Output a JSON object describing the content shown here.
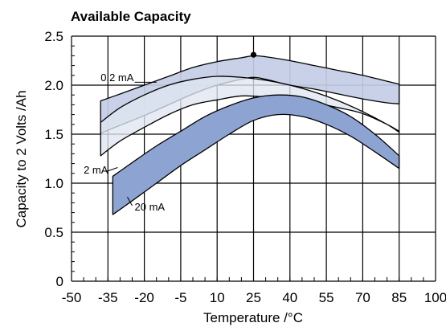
{
  "chart_data": {
    "type": "area",
    "title": "Available Capacity",
    "xlabel": "Temperature /°C",
    "ylabel": "Capacity to 2 Volts /Ah",
    "xlim": [
      -50,
      100
    ],
    "ylim": [
      0,
      2.5
    ],
    "xticks": [
      "-50",
      "-35",
      "-20",
      "-5",
      "10",
      "25",
      "40",
      "55",
      "70",
      "85",
      "100"
    ],
    "yticks": [
      "0",
      "0.5",
      "1.0",
      "1.5",
      "2.0",
      "2.5"
    ],
    "grid": true,
    "colors": {
      "band_light": "#dfe5f1",
      "band_mid": "#c3cde6",
      "band_dark": "#8da3d1",
      "stroke": "#000000"
    },
    "annotations": [
      {
        "text": "0.2 mA",
        "x": -38,
        "y": 2.04
      },
      {
        "text": "2 mA",
        "x": -45,
        "y": 1.1
      },
      {
        "text": "20 mA",
        "x": -24,
        "y": 0.72
      }
    ],
    "marker": {
      "x": 25,
      "y": 2.31
    },
    "series": [
      {
        "name": "0.2 mA",
        "upper": {
          "x": [
            -38,
            -30,
            -20,
            -10,
            0,
            10,
            20,
            25,
            30,
            40,
            50,
            60,
            70,
            80,
            85
          ],
          "y": [
            1.84,
            1.91,
            2.0,
            2.09,
            2.18,
            2.24,
            2.28,
            2.3,
            2.29,
            2.25,
            2.2,
            2.15,
            2.1,
            2.04,
            2.01
          ]
        },
        "lower": {
          "x": [
            -38,
            -30,
            -20,
            -10,
            0,
            10,
            20,
            25,
            30,
            40,
            50,
            60,
            70,
            80,
            85
          ],
          "y": [
            1.51,
            1.59,
            1.69,
            1.8,
            1.91,
            2.0,
            2.06,
            2.08,
            2.06,
            2.0,
            1.96,
            1.91,
            1.86,
            1.82,
            1.81
          ]
        }
      },
      {
        "name": "2 mA",
        "upper": {
          "x": [
            -38,
            -30,
            -20,
            -10,
            0,
            10,
            20,
            30,
            40,
            50,
            60,
            70,
            80,
            85
          ],
          "y": [
            1.62,
            1.77,
            1.9,
            2.0,
            2.06,
            2.09,
            2.08,
            2.05,
            2.0,
            1.93,
            1.84,
            1.73,
            1.6,
            1.52
          ]
        },
        "lower": {
          "x": [
            -38,
            -30,
            -20,
            -10,
            0,
            10,
            20,
            30,
            40,
            50,
            60,
            70,
            80,
            85
          ],
          "y": [
            1.28,
            1.43,
            1.57,
            1.7,
            1.8,
            1.85,
            1.89,
            1.88,
            1.86,
            1.82,
            1.77,
            1.71,
            1.6,
            1.53
          ]
        }
      },
      {
        "name": "20 mA",
        "upper": {
          "x": [
            -33,
            -25,
            -15,
            -5,
            5,
            15,
            25,
            35,
            45,
            55,
            65,
            75,
            85
          ],
          "y": [
            1.07,
            1.21,
            1.38,
            1.53,
            1.68,
            1.79,
            1.87,
            1.9,
            1.88,
            1.8,
            1.68,
            1.5,
            1.28
          ]
        },
        "lower": {
          "x": [
            -33,
            -25,
            -15,
            -5,
            5,
            15,
            25,
            35,
            45,
            55,
            65,
            75,
            85
          ],
          "y": [
            0.68,
            0.82,
            1.0,
            1.18,
            1.34,
            1.5,
            1.64,
            1.7,
            1.68,
            1.6,
            1.48,
            1.32,
            1.15
          ]
        }
      }
    ]
  }
}
